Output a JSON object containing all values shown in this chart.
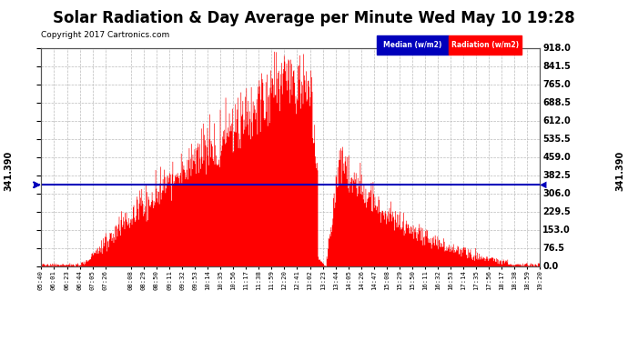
{
  "title": "Solar Radiation & Day Average per Minute Wed May 10 19:28",
  "copyright": "Copyright 2017 Cartronics.com",
  "median_value": 341.39,
  "ymin": 0.0,
  "ymax": 918.0,
  "yticks": [
    0.0,
    76.5,
    153.0,
    229.5,
    306.0,
    382.5,
    459.0,
    535.5,
    612.0,
    688.5,
    765.0,
    841.5,
    918.0
  ],
  "area_color": "#FF0000",
  "median_color": "#0000BB",
  "background_color": "#FFFFFF",
  "grid_color": "#BBBBBB",
  "legend_median_bg": "#0000BB",
  "legend_radiation_bg": "#FF0000",
  "legend_median_text": "Median (w/m2)",
  "legend_radiation_text": "Radiation (w/m2)",
  "title_fontsize": 12,
  "copyright_fontsize": 6.5,
  "xtick_labels": [
    "05:40",
    "06:01",
    "06:23",
    "06:44",
    "07:05",
    "07:26",
    "08:08",
    "08:29",
    "08:50",
    "09:11",
    "09:32",
    "09:53",
    "10:14",
    "10:35",
    "10:56",
    "11:17",
    "11:38",
    "11:59",
    "12:20",
    "12:41",
    "13:02",
    "13:23",
    "13:44",
    "14:05",
    "14:26",
    "14:47",
    "15:08",
    "15:29",
    "15:50",
    "16:11",
    "16:32",
    "16:53",
    "17:14",
    "17:35",
    "17:56",
    "18:17",
    "18:38",
    "18:59",
    "19:20"
  ]
}
